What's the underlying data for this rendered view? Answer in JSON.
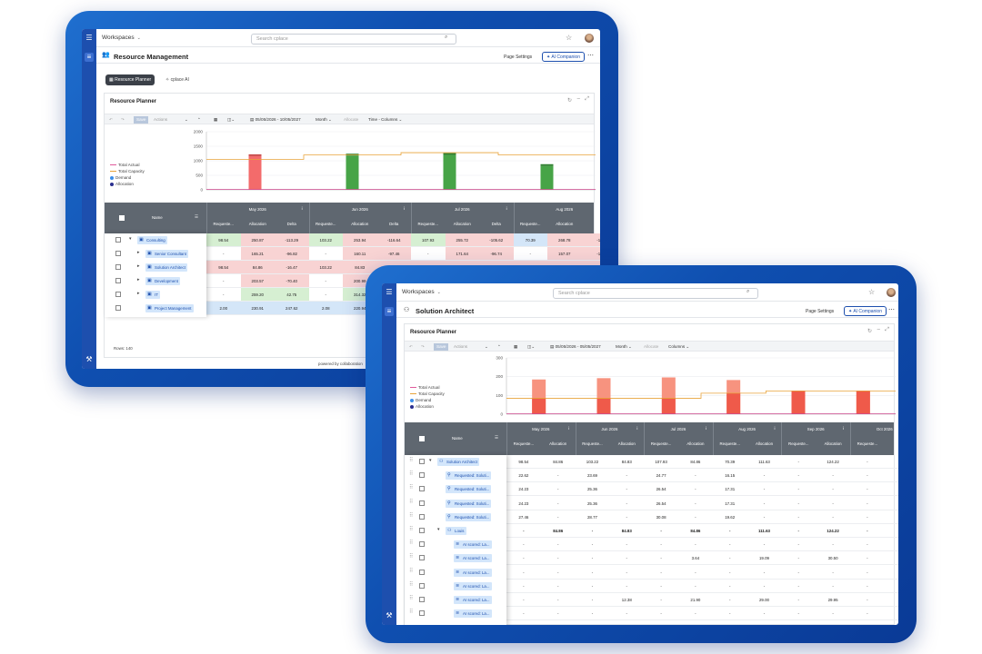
{
  "common": {
    "workspaces": "Workspaces",
    "search_placeholder": "Search cplace",
    "page_settings": "Page Settings",
    "ai_companion": "AI Companion",
    "card_title": "Resource Planner",
    "save": "Save",
    "actions": "Actions",
    "month": "Month",
    "allocate": "Allocate",
    "name_header": "Name"
  },
  "back": {
    "page_title": "Resource Management",
    "tabs": [
      "Resource Planner",
      "cplace AI"
    ],
    "date_range": "05/05/2026 - 10/05/2027",
    "view_mode": "Time - Columns",
    "legend": [
      "Total Actual",
      "Total Capacity",
      "Demand",
      "Allocation"
    ],
    "y_ticks": [
      "2000",
      "1500",
      "1000",
      "500",
      "0"
    ],
    "months": [
      "May 2026",
      "Jun 2026",
      "Jul 2026",
      "Aug 2026"
    ],
    "sub_headers": [
      "Requeste...",
      "Allocation",
      "Delta",
      "Requeste...",
      "Allocation",
      "Delta",
      "Requeste...",
      "Allocation",
      "Delta",
      "Requeste...",
      "Allocation",
      "-"
    ],
    "rows": [
      {
        "label": "Consulting",
        "cells": [
          "98.54",
          "250.87",
          "-113.29",
          "103.22",
          "253.94",
          "-116.64",
          "107.93",
          "255.72",
          "-105.62",
          "70.39",
          "268.78",
          "-1"
        ]
      },
      {
        "label": "Senior Consultant",
        "cells": [
          "-",
          "165.21",
          "-96.82",
          "-",
          "160.11",
          "-97.46",
          "-",
          "171.64",
          "-96.74",
          "-",
          "157.07",
          "-1"
        ]
      },
      {
        "label": "Solution Architect",
        "cells": [
          "98.54",
          "84.86",
          "-16.47",
          "103.22",
          "84.83",
          "-13.10",
          "107.93",
          "84.86",
          "-9.10",
          "70.39",
          "111.63",
          "-1"
        ]
      },
      {
        "label": "Development",
        "cells": [
          "-",
          "203.57",
          "-70.40",
          "-",
          "200.99",
          "",
          "",
          "",
          "",
          "",
          "",
          ""
        ]
      },
      {
        "label": "IT",
        "cells": [
          "-",
          "259.20",
          "42.75",
          "-",
          "314.32",
          "",
          "",
          "",
          "",
          "",
          "",
          ""
        ]
      },
      {
        "label": "Project Management",
        "cells": [
          "2.00",
          "230.91",
          "247.62",
          "2.08",
          "220.94",
          "",
          "",
          "",
          "",
          "",
          "",
          ""
        ]
      }
    ],
    "rows_count": "Rows: 140",
    "powered_by": "powered by collaboration"
  },
  "front": {
    "page_title": "Solution Architect",
    "date_range": "05/05/2026 - 05/05/2027",
    "view_mode": "Columns",
    "legend": [
      "Total Actual",
      "Total Capacity",
      "Demand",
      "Allocation"
    ],
    "y_ticks": [
      "300",
      "200",
      "100",
      "0"
    ],
    "months": [
      "May 2026",
      "Jun 2026",
      "Jul 2026",
      "Aug 2026",
      "Sep 2026",
      "Oct 2026"
    ],
    "sub_headers": [
      "Requeste...",
      "Allocation",
      "Requeste...",
      "Allocation",
      "Requeste...",
      "Allocation",
      "Requeste...",
      "Allocation",
      "Requeste...",
      "Allocation",
      "Requeste...",
      "Allo"
    ],
    "rows": [
      {
        "label": "Solution Architect",
        "indent": 0,
        "icon": "person",
        "bold": false,
        "cells": [
          "98.54",
          "84.86",
          "103.22",
          "84.83",
          "107.93",
          "84.86",
          "70.39",
          "111.63",
          "-",
          "124.22",
          "-",
          "1"
        ]
      },
      {
        "label": "Requested: Soluti...",
        "indent": 1,
        "icon": "bulb",
        "bold": false,
        "cells": [
          "22.62",
          "-",
          "23.69",
          "-",
          "24.77",
          "-",
          "16.15",
          "-",
          "-",
          "-",
          "-",
          ""
        ]
      },
      {
        "label": "Requested: Soluti...",
        "indent": 1,
        "icon": "bulb",
        "bold": false,
        "cells": [
          "24.23",
          "-",
          "25.36",
          "-",
          "26.54",
          "-",
          "17.31",
          "-",
          "-",
          "-",
          "-",
          ""
        ]
      },
      {
        "label": "Requested: Soluti...",
        "indent": 1,
        "icon": "bulb",
        "bold": false,
        "cells": [
          "24.23",
          "-",
          "25.36",
          "-",
          "26.54",
          "-",
          "17.31",
          "-",
          "-",
          "-",
          "-",
          ""
        ]
      },
      {
        "label": "Requested: Soluti...",
        "indent": 1,
        "icon": "bulb",
        "bold": false,
        "cells": [
          "27.46",
          "-",
          "28.77",
          "-",
          "30.08",
          "-",
          "19.62",
          "-",
          "-",
          "-",
          "-",
          ""
        ]
      },
      {
        "label": "Louis",
        "indent": 1,
        "icon": "person",
        "bold": true,
        "cells": [
          "-",
          "84.86",
          "-",
          "84.83",
          "-",
          "84.86",
          "-",
          "111.63",
          "-",
          "124.22",
          "-",
          ""
        ]
      },
      {
        "label": "AI scored: La...",
        "indent": 2,
        "icon": "ai",
        "bold": false,
        "cells": [
          "-",
          "-",
          "-",
          "-",
          "-",
          "-",
          "-",
          "-",
          "-",
          "-",
          "-",
          ""
        ]
      },
      {
        "label": "AI scored: La...",
        "indent": 2,
        "icon": "ai",
        "bold": false,
        "cells": [
          "-",
          "-",
          "-",
          "-",
          "-",
          "3.64",
          "-",
          "19.09",
          "-",
          "30.50",
          "-",
          ""
        ]
      },
      {
        "label": "AI scored: La...",
        "indent": 2,
        "icon": "ai",
        "bold": false,
        "cells": [
          "-",
          "-",
          "-",
          "-",
          "-",
          "-",
          "-",
          "-",
          "-",
          "-",
          "-",
          ""
        ]
      },
      {
        "label": "AI scored: La...",
        "indent": 2,
        "icon": "ai",
        "bold": false,
        "cells": [
          "-",
          "-",
          "-",
          "-",
          "-",
          "-",
          "-",
          "-",
          "-",
          "-",
          "-",
          ""
        ]
      },
      {
        "label": "AI scored: La...",
        "indent": 2,
        "icon": "ai",
        "bold": false,
        "cells": [
          "-",
          "-",
          "-",
          "12.38",
          "-",
          "21.90",
          "-",
          "29.00",
          "-",
          "29.95",
          "-",
          ""
        ]
      },
      {
        "label": "AI scored: La...",
        "indent": 2,
        "icon": "ai",
        "bold": false,
        "cells": [
          "-",
          "-",
          "-",
          "-",
          "-",
          "-",
          "-",
          "-",
          "-",
          "-",
          "-",
          ""
        ]
      }
    ]
  },
  "chart_data": [
    {
      "type": "bar",
      "categories": [
        "May 2026",
        "Jun 2026",
        "Jul 2026",
        "Aug 2026"
      ],
      "series": [
        {
          "name": "Demand",
          "values": [
            1160,
            1180,
            1200,
            820
          ]
        },
        {
          "name": "Total Capacity",
          "values": [
            1050,
            1200,
            1280,
            1200
          ]
        }
      ],
      "ylim": [
        0,
        2000
      ],
      "colors": {
        "demand": "#f36b6b",
        "allocation": "#47a447",
        "capacity": "#e8a33a"
      }
    },
    {
      "type": "bar",
      "categories": [
        "May 2026",
        "Jun 2026",
        "Jul 2026",
        "Aug 2026",
        "Sep 2026",
        "Oct 2026"
      ],
      "series": [
        {
          "name": "Demand",
          "values": [
            185,
            192,
            196,
            182,
            122,
            122
          ]
        },
        {
          "name": "Allocation",
          "values": [
            85,
            85,
            85,
            112,
            124,
            124
          ]
        },
        {
          "name": "Total Capacity",
          "values": [
            85,
            85,
            85,
            112,
            124,
            124
          ]
        }
      ],
      "ylim": [
        0,
        300
      ],
      "colors": {
        "demand": "#f7937f",
        "allocation": "#ef5a4a",
        "capacity": "#e8a33a"
      }
    }
  ]
}
